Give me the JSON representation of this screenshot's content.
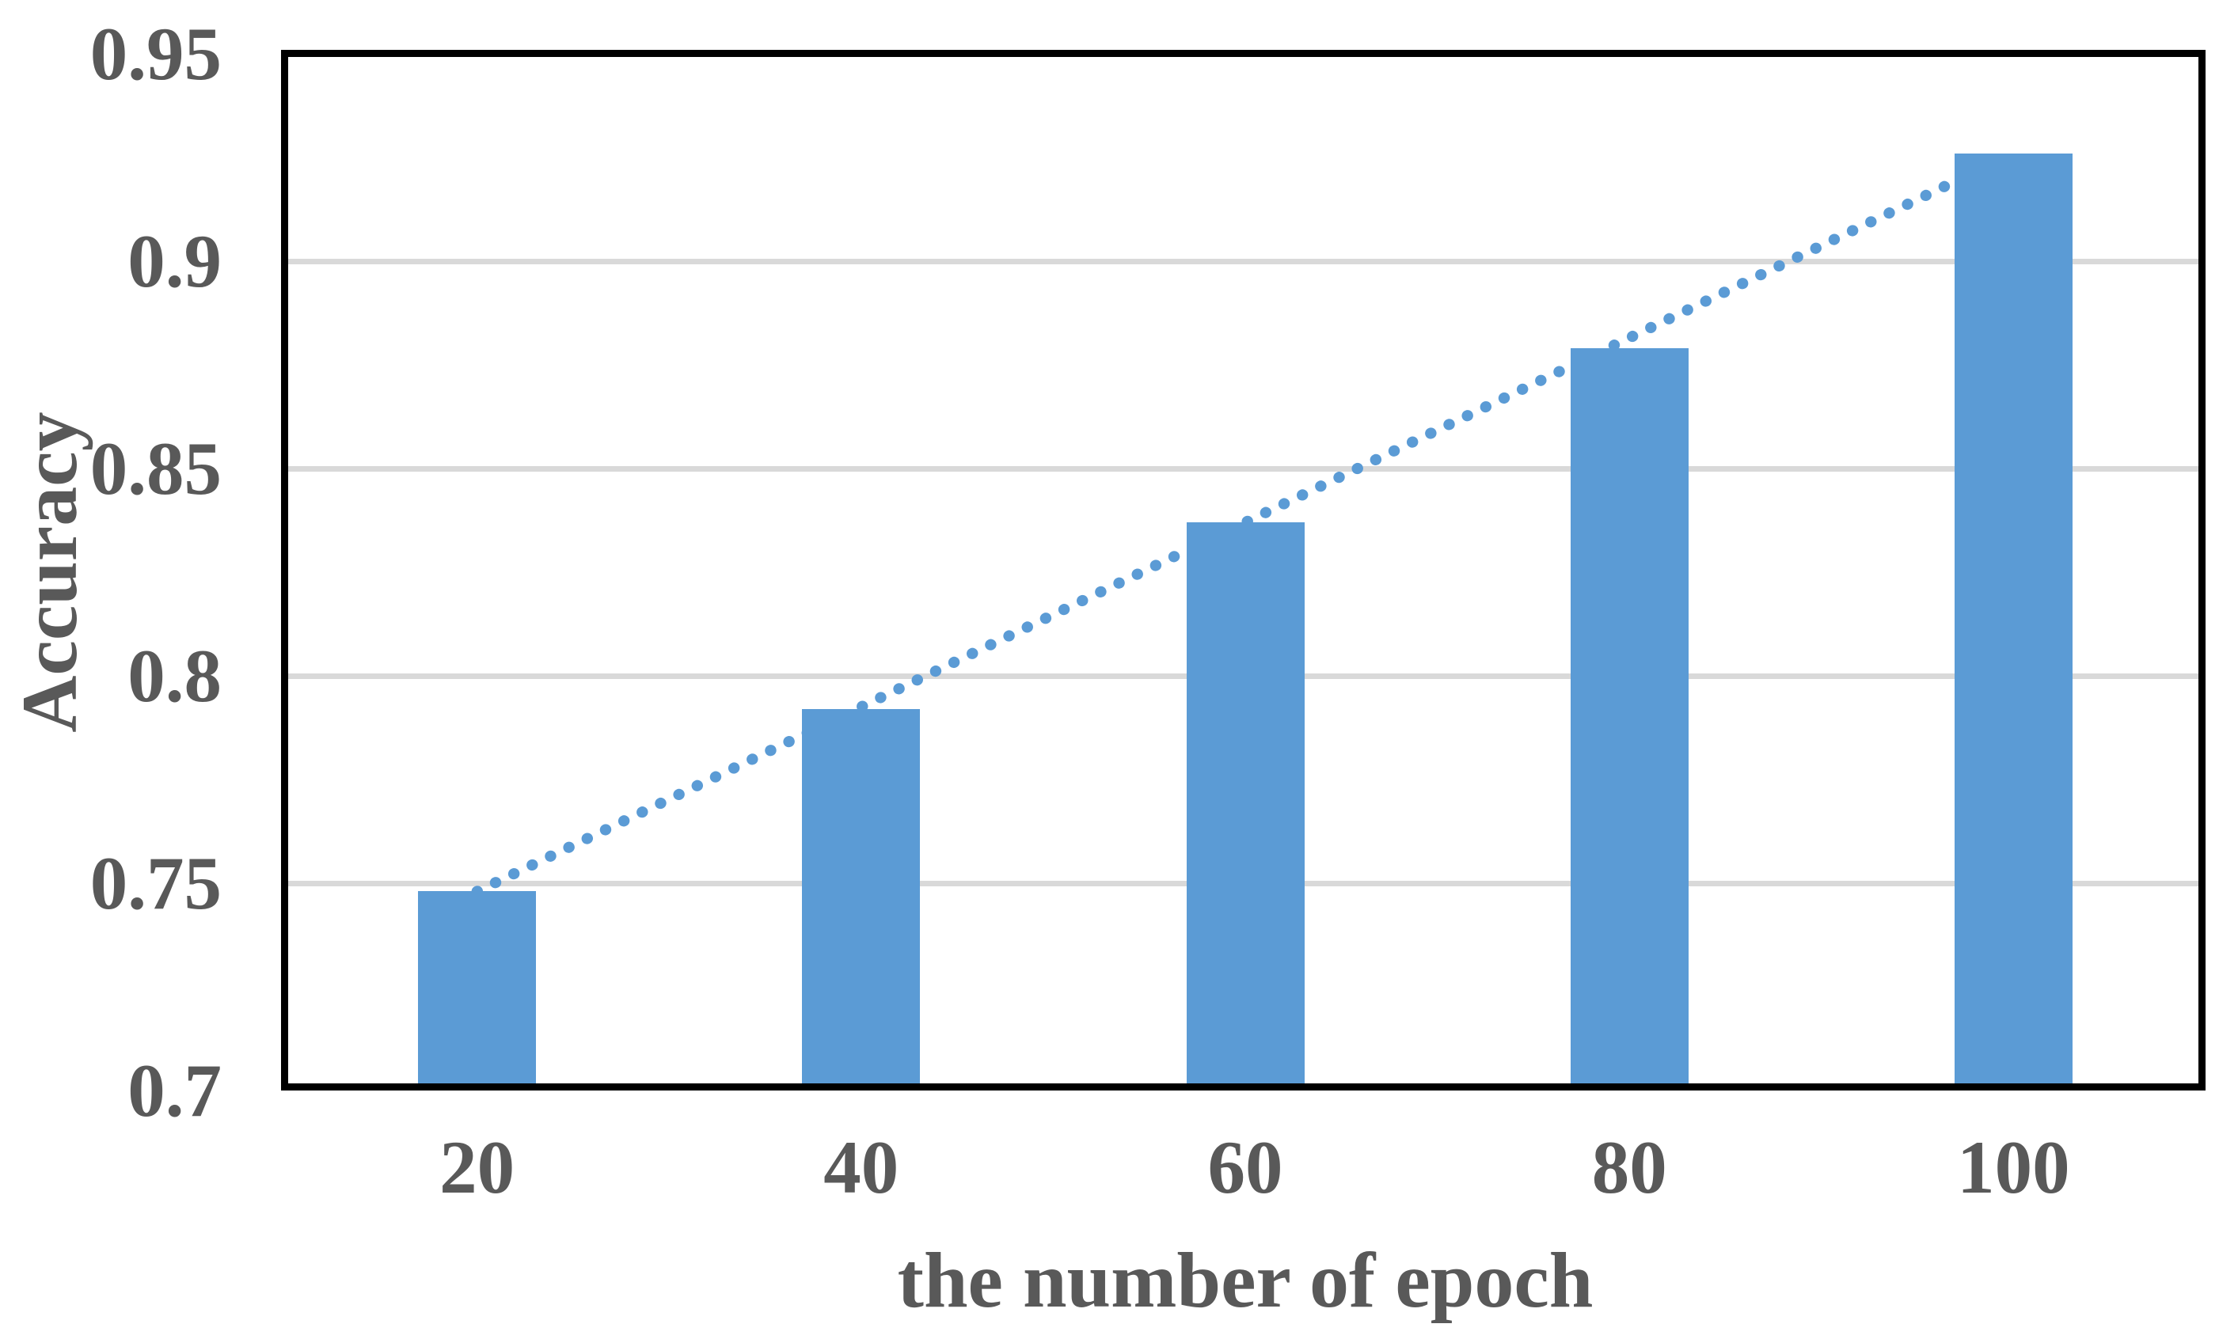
{
  "chart_data": {
    "type": "bar",
    "title": "",
    "categories": [
      "20",
      "40",
      "60",
      "80",
      "100"
    ],
    "series": [
      {
        "name": "Accuracy",
        "values": [
          0.748,
          0.792,
          0.837,
          0.879,
          0.926
        ]
      }
    ],
    "trendline": {
      "style": "dotted",
      "shape": "linear",
      "start_value": 0.748,
      "end_value": 0.926
    },
    "xlabel": "the number of epoch",
    "ylabel": "Accuracy",
    "ylim": [
      0.7,
      0.95
    ],
    "yticks": [
      0.7,
      0.75,
      0.8,
      0.85,
      0.9,
      0.95
    ],
    "ytick_labels": [
      "0.7",
      "0.75",
      "0.8",
      "0.85",
      "0.9",
      "0.95"
    ],
    "grid": "horizontal",
    "legend": "none",
    "colors": {
      "bar": "#5B9BD5",
      "trendline": "#5B9BD5",
      "axis_text": "#595959",
      "gridline": "#D9D9D9",
      "plot_border": "#000000",
      "background": "#FFFFFF"
    }
  }
}
